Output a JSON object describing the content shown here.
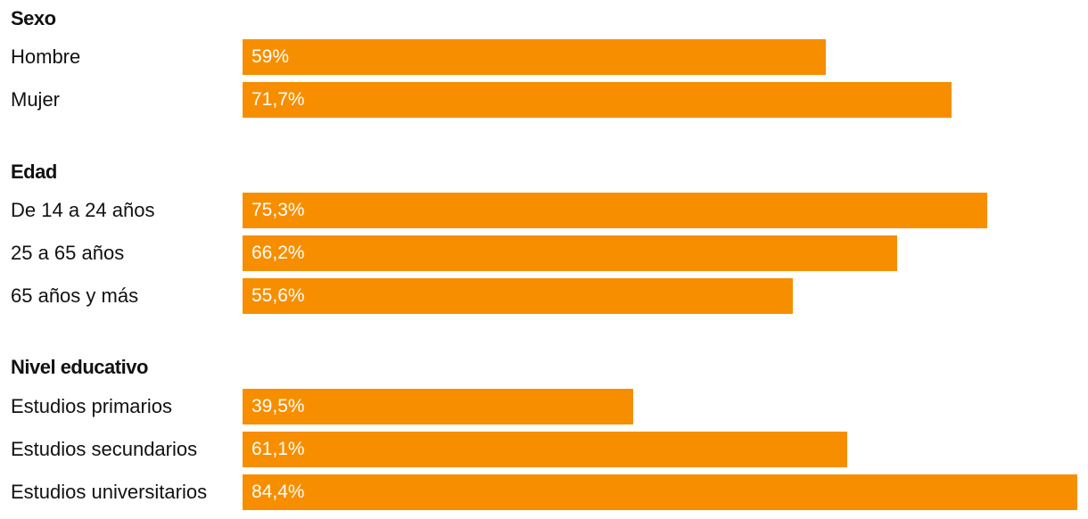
{
  "colors": {
    "bar": "#f78e00",
    "value_text": "#ffffff",
    "label_text": "#111111"
  },
  "chart_data": {
    "type": "bar",
    "orientation": "horizontal",
    "xlim": [
      0,
      84.4
    ],
    "grid": false,
    "legend": "none",
    "groups": [
      {
        "title": "Sexo",
        "items": [
          {
            "label": "Hombre",
            "value": 59,
            "display": "59%"
          },
          {
            "label": "Mujer",
            "value": 71.7,
            "display": "71,7%"
          }
        ]
      },
      {
        "title": "Edad",
        "items": [
          {
            "label": "De 14 a 24 años",
            "value": 75.3,
            "display": "75,3%"
          },
          {
            "label": "25 a 65 años",
            "value": 66.2,
            "display": "66,2%"
          },
          {
            "label": "65 años y más",
            "value": 55.6,
            "display": "55,6%"
          }
        ]
      },
      {
        "title": "Nivel educativo",
        "items": [
          {
            "label": "Estudios primarios",
            "value": 39.5,
            "display": "39,5%"
          },
          {
            "label": "Estudios secundarios",
            "value": 61.1,
            "display": "61,1%"
          },
          {
            "label": "Estudios universitarios",
            "value": 84.4,
            "display": "84,4%"
          }
        ]
      }
    ]
  }
}
